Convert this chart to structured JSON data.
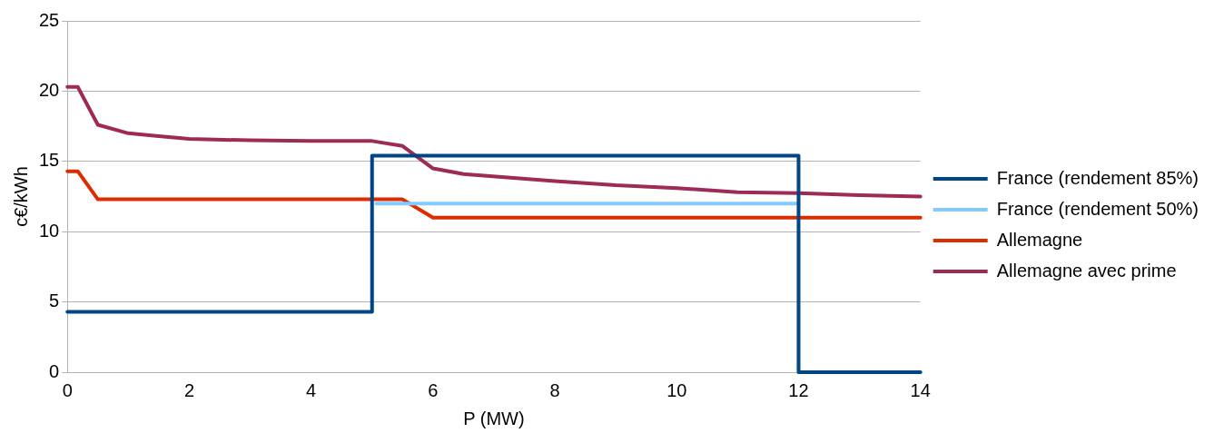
{
  "chart_data": {
    "type": "line",
    "xlabel": "P (MW)",
    "ylabel": "c€/kWh",
    "xlim": [
      0,
      14
    ],
    "xticks": [
      0,
      2,
      4,
      6,
      8,
      10,
      12,
      14
    ],
    "ylim": [
      0,
      25
    ],
    "yticks": [
      0,
      5,
      10,
      15,
      20,
      25
    ],
    "grid": "y",
    "legend": "right",
    "marker": "none",
    "line_style": "solid",
    "series": [
      {
        "name": "France (rendement 85%)",
        "color": "#004586",
        "x": [
          0,
          5,
          5,
          12,
          12,
          14
        ],
        "values": [
          4.3,
          4.3,
          15.4,
          15.4,
          0,
          0
        ]
      },
      {
        "name": "France (rendement 50%)",
        "color": "#83caff",
        "x": [
          5.07,
          12
        ],
        "values": [
          12.0,
          12.0
        ]
      },
      {
        "name": "Allemagne",
        "color": "#dd2c00",
        "x": [
          0,
          0.17,
          0.5,
          5.5,
          6,
          14
        ],
        "values": [
          14.3,
          14.3,
          12.3,
          12.3,
          11.0,
          11.0
        ]
      },
      {
        "name": "Allemagne avec prime",
        "color": "#9e2b55",
        "x": [
          0,
          0.17,
          0.5,
          1,
          1.5,
          2,
          3,
          4,
          5,
          5.5,
          6,
          6.5,
          8,
          9,
          10,
          11,
          12,
          13,
          14
        ],
        "values": [
          20.3,
          20.3,
          17.6,
          17.0,
          16.8,
          16.6,
          16.5,
          16.45,
          16.45,
          16.1,
          14.5,
          14.1,
          13.6,
          13.3,
          13.1,
          12.8,
          12.75,
          12.6,
          12.5
        ]
      }
    ]
  }
}
